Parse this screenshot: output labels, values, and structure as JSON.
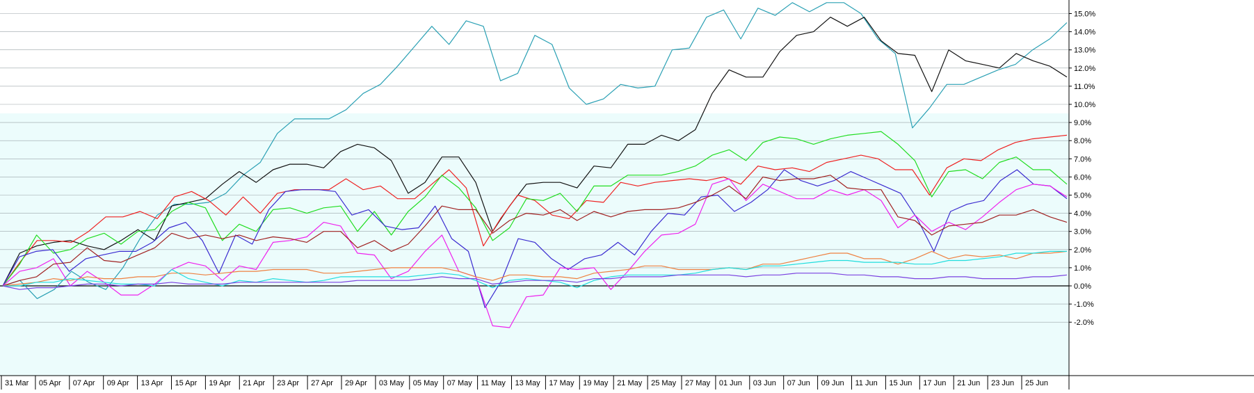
{
  "chart_data": {
    "type": "line",
    "title": "",
    "xlabel": "",
    "ylabel": "",
    "ylim": [
      -2.3,
      15.6
    ],
    "y_ticks": [
      -2,
      -1,
      0,
      1,
      2,
      3,
      4,
      5,
      6,
      7,
      8,
      9,
      10,
      11,
      12,
      13,
      14,
      15
    ],
    "y_tick_labels": [
      "-2.0%",
      "-1.0%",
      "0.0%",
      "1.0%",
      "2.0%",
      "3.0%",
      "4.0%",
      "5.0%",
      "6.0%",
      "7.0%",
      "8.0%",
      "9.0%",
      "10.0%",
      "11.0%",
      "12.0%",
      "13.0%",
      "14.0%",
      "15.0%"
    ],
    "x_tick_labels": [
      "31 Mar",
      "05 Apr",
      "07 Apr",
      "09 Apr",
      "13 Apr",
      "15 Apr",
      "19 Apr",
      "21 Apr",
      "23 Apr",
      "27 Apr",
      "29 Apr",
      "03 May",
      "05 May",
      "07 May",
      "11 May",
      "13 May",
      "17 May",
      "19 May",
      "21 May",
      "25 May",
      "27 May",
      "01 Jun",
      "03 Jun",
      "07 Jun",
      "09 Jun",
      "11 Jun",
      "15 Jun",
      "17 Jun",
      "21 Jun",
      "23 Jun",
      "25 Jun"
    ],
    "grid": true,
    "legend": "none",
    "background": "#ecfcfc",
    "series": [
      {
        "color": "#2aa0b4",
        "values": [
          0,
          0.3,
          -0.7,
          -0.2,
          0.8,
          0.2,
          -0.2,
          1.0,
          2.6,
          3.9,
          4.5,
          4.5,
          4.6,
          5.1,
          6.1,
          6.8,
          8.4,
          9.2,
          9.2,
          9.2,
          9.7,
          10.6,
          11.1,
          12.1,
          13.2,
          14.3,
          13.3,
          14.6,
          14.3,
          11.3,
          11.7,
          13.8,
          13.3,
          10.9,
          10.0,
          10.3,
          11.1,
          10.9,
          11.0,
          13.0,
          13.1,
          14.8,
          15.2,
          13.6,
          15.3,
          14.9,
          15.6,
          15.1,
          15.6,
          15.6,
          15.0,
          13.6,
          12.8,
          8.7,
          9.8,
          11.1,
          11.1,
          11.5,
          11.9,
          12.2,
          13.0,
          13.6,
          14.5
        ]
      },
      {
        "color": "#111111",
        "values": [
          0,
          1.8,
          2.2,
          2.4,
          2.5,
          2.2,
          2.0,
          2.5,
          3.1,
          2.5,
          4.4,
          4.6,
          4.8,
          5.6,
          6.3,
          5.7,
          6.4,
          6.7,
          6.7,
          6.5,
          7.4,
          7.8,
          7.6,
          6.9,
          5.1,
          5.7,
          7.1,
          7.1,
          5.7,
          3.0,
          4.4,
          5.6,
          5.7,
          5.7,
          5.4,
          6.6,
          6.5,
          7.8,
          7.8,
          8.3,
          8.0,
          8.6,
          10.6,
          11.9,
          11.5,
          11.5,
          12.9,
          13.8,
          14.0,
          14.8,
          14.3,
          14.8,
          13.5,
          12.8,
          12.7,
          10.7,
          13.0,
          12.4,
          12.2,
          12.0,
          12.8,
          12.4,
          12.1,
          11.5
        ]
      },
      {
        "color": "#ee2020",
        "values": [
          0,
          1.3,
          2.5,
          2.5,
          2.4,
          3.0,
          3.8,
          3.8,
          4.1,
          3.7,
          4.9,
          5.2,
          4.7,
          3.9,
          4.9,
          4.0,
          5.1,
          5.3,
          5.3,
          5.3,
          5.9,
          5.3,
          5.5,
          4.8,
          4.8,
          5.6,
          6.4,
          5.4,
          2.2,
          3.7,
          5.0,
          4.7,
          3.9,
          3.7,
          4.7,
          4.6,
          5.7,
          5.5,
          5.7,
          5.8,
          5.9,
          5.8,
          6.0,
          5.6,
          6.6,
          6.4,
          6.5,
          6.3,
          6.8,
          7.0,
          7.2,
          7.0,
          6.4,
          6.4,
          5.0,
          6.5,
          7.0,
          6.9,
          7.5,
          7.9,
          8.1,
          8.2,
          8.3
        ]
      },
      {
        "color": "#20dd20",
        "values": [
          0,
          1.2,
          2.8,
          1.8,
          2.0,
          2.6,
          2.9,
          2.3,
          3.0,
          3.1,
          4.1,
          4.6,
          4.3,
          2.5,
          3.4,
          3.0,
          4.2,
          4.3,
          4.0,
          4.3,
          4.4,
          3.0,
          4.1,
          2.8,
          4.1,
          4.9,
          6.1,
          5.4,
          4.3,
          2.5,
          3.2,
          4.8,
          4.7,
          5.1,
          4.1,
          5.5,
          5.5,
          6.1,
          6.1,
          6.1,
          6.3,
          6.6,
          7.2,
          7.5,
          6.9,
          7.9,
          8.2,
          8.1,
          7.8,
          8.1,
          8.3,
          8.4,
          8.5,
          7.8,
          6.9,
          4.9,
          6.3,
          6.4,
          5.9,
          6.8,
          7.1,
          6.4,
          6.4,
          5.6
        ]
      },
      {
        "color": "#3a2ad0",
        "values": [
          0,
          1.6,
          1.9,
          2.0,
          0.8,
          1.5,
          1.7,
          1.9,
          1.9,
          2.4,
          3.2,
          3.5,
          2.5,
          0.7,
          2.8,
          2.3,
          4.2,
          5.2,
          5.3,
          5.3,
          5.2,
          3.9,
          4.2,
          3.3,
          3.1,
          3.2,
          4.4,
          2.6,
          1.9,
          -1.2,
          0.3,
          2.6,
          2.4,
          1.5,
          0.9,
          1.5,
          1.7,
          2.4,
          1.7,
          3.0,
          4.0,
          3.9,
          4.9,
          5.0,
          4.1,
          4.6,
          5.3,
          6.4,
          5.8,
          5.5,
          5.8,
          6.3,
          5.9,
          5.5,
          5.1,
          3.7,
          1.9,
          4.1,
          4.5,
          4.7,
          5.8,
          6.4,
          5.6,
          5.5,
          4.8
        ]
      },
      {
        "color": "#ee20ee",
        "values": [
          0,
          0.8,
          1.0,
          1.5,
          0.0,
          0.8,
          0.2,
          -0.5,
          -0.5,
          0.1,
          0.9,
          1.3,
          1.1,
          0.3,
          1.1,
          0.9,
          2.4,
          2.5,
          2.7,
          3.5,
          3.3,
          1.8,
          1.7,
          0.4,
          0.8,
          1.9,
          2.8,
          0.8,
          0.5,
          -2.2,
          -2.3,
          -0.6,
          -0.5,
          1.0,
          0.9,
          1.0,
          -0.2,
          0.8,
          1.9,
          2.8,
          2.9,
          3.4,
          5.6,
          5.9,
          4.7,
          5.6,
          5.2,
          4.8,
          4.8,
          5.3,
          5.0,
          5.3,
          4.7,
          3.2,
          3.9,
          3.0,
          3.5,
          3.1,
          3.8,
          4.6,
          5.3,
          5.6,
          5.5,
          4.9
        ]
      },
      {
        "color": "#a02020",
        "values": [
          0,
          0.3,
          0.5,
          1.2,
          1.3,
          2.1,
          1.4,
          1.3,
          1.7,
          2.1,
          2.9,
          2.6,
          2.8,
          2.6,
          2.8,
          2.5,
          2.7,
          2.6,
          2.4,
          3.0,
          3.0,
          2.1,
          2.5,
          1.9,
          2.3,
          3.3,
          4.4,
          4.2,
          4.2,
          2.9,
          3.6,
          4.0,
          3.9,
          4.2,
          3.6,
          4.1,
          3.8,
          4.1,
          4.2,
          4.2,
          4.3,
          4.6,
          5.0,
          5.5,
          4.8,
          6.0,
          5.8,
          5.9,
          5.9,
          6.1,
          5.4,
          5.3,
          5.3,
          3.8,
          3.6,
          2.8,
          3.3,
          3.4,
          3.5,
          3.9,
          3.9,
          4.2,
          3.8,
          3.5
        ]
      },
      {
        "color": "#ee8040",
        "values": [
          0,
          0.1,
          0.2,
          0.4,
          0.3,
          0.5,
          0.4,
          0.4,
          0.5,
          0.5,
          0.7,
          0.7,
          0.6,
          0.7,
          0.8,
          0.8,
          0.9,
          0.9,
          0.9,
          0.7,
          0.7,
          0.8,
          0.9,
          1.0,
          1.0,
          1.0,
          1.0,
          0.8,
          0.5,
          0.3,
          0.6,
          0.6,
          0.5,
          0.5,
          0.4,
          0.7,
          0.8,
          0.9,
          1.1,
          1.1,
          0.9,
          0.9,
          0.9,
          1.0,
          0.9,
          1.2,
          1.2,
          1.4,
          1.6,
          1.8,
          1.8,
          1.5,
          1.5,
          1.2,
          1.5,
          1.9,
          1.5,
          1.7,
          1.6,
          1.7,
          1.5,
          1.8,
          1.8,
          1.9
        ]
      },
      {
        "color": "#20dddd",
        "values": [
          0,
          0.0,
          0.2,
          0.2,
          0.4,
          0.3,
          0.2,
          0.1,
          0.1,
          0.0,
          0.9,
          0.4,
          0.2,
          0.0,
          0.3,
          0.2,
          0.4,
          0.3,
          0.2,
          0.3,
          0.5,
          0.5,
          0.5,
          0.5,
          0.5,
          0.6,
          0.7,
          0.6,
          0.3,
          -0.1,
          0.3,
          0.4,
          0.3,
          0.2,
          -0.1,
          0.3,
          0.5,
          0.6,
          0.6,
          0.6,
          0.6,
          0.7,
          0.9,
          1.0,
          0.9,
          1.1,
          1.1,
          1.2,
          1.3,
          1.4,
          1.4,
          1.3,
          1.3,
          1.3,
          1.2,
          1.2,
          1.4,
          1.4,
          1.5,
          1.6,
          1.8,
          1.8,
          1.9,
          1.9
        ]
      },
      {
        "color": "#7a40e0",
        "values": [
          0,
          -0.2,
          -0.1,
          -0.1,
          0.0,
          0.1,
          0.1,
          0.0,
          0.1,
          0.1,
          0.2,
          0.1,
          0.1,
          0.1,
          0.2,
          0.2,
          0.2,
          0.2,
          0.2,
          0.2,
          0.2,
          0.3,
          0.3,
          0.3,
          0.3,
          0.4,
          0.5,
          0.4,
          0.4,
          0.1,
          0.2,
          0.3,
          0.3,
          0.3,
          0.2,
          0.4,
          0.4,
          0.5,
          0.5,
          0.5,
          0.6,
          0.6,
          0.6,
          0.6,
          0.5,
          0.6,
          0.6,
          0.7,
          0.7,
          0.7,
          0.6,
          0.6,
          0.5,
          0.5,
          0.4,
          0.4,
          0.5,
          0.5,
          0.4,
          0.4,
          0.4,
          0.5,
          0.5,
          0.6
        ]
      }
    ]
  }
}
